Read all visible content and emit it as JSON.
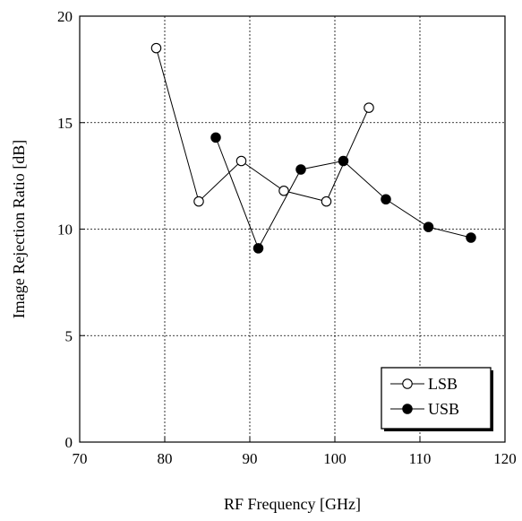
{
  "chart_data": {
    "type": "line",
    "title": "",
    "xlabel": "RF Frequency [GHz]",
    "ylabel": "Image Rejection Ratio [dB]",
    "xlim": [
      70,
      120
    ],
    "ylim": [
      0,
      20
    ],
    "xticks": [
      "70",
      "80",
      "90",
      "100",
      "110",
      "120"
    ],
    "yticks": [
      "0",
      "5",
      "10",
      "15",
      "20"
    ],
    "grid": true,
    "legend_position": "bottom-right",
    "series": [
      {
        "name": "LSB",
        "marker": "open-circle",
        "x": [
          79,
          84,
          89,
          94,
          99,
          104
        ],
        "y": [
          18.5,
          11.3,
          13.2,
          11.8,
          11.3,
          15.7
        ]
      },
      {
        "name": "USB",
        "marker": "filled-circle",
        "x": [
          86,
          91,
          96,
          101,
          106,
          111,
          116
        ],
        "y": [
          14.3,
          9.1,
          12.8,
          13.2,
          11.4,
          10.1,
          9.6
        ]
      }
    ]
  }
}
